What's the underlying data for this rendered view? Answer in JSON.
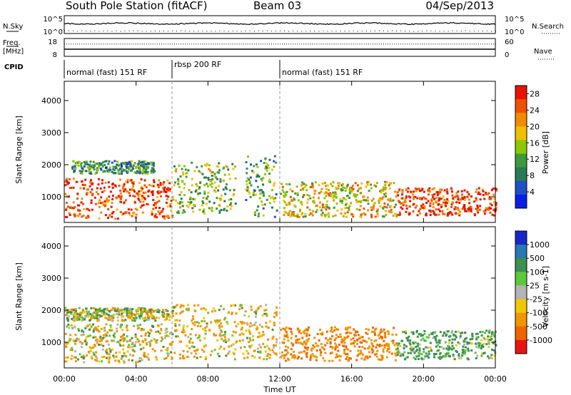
{
  "header": {
    "station": "South Pole Station (fitACF)",
    "beam": "Beam 03",
    "date": "04/Sep/2013"
  },
  "status_panel": {
    "nsky_label": "N.Sky",
    "nsearch_label": "N.Search",
    "freq_label_line1": "Freq.",
    "freq_label_line2": "[MHz]",
    "nave_label": "Nave",
    "cpid_label": "CPID",
    "noise_ticks_left": [
      "10^5",
      "10^0"
    ],
    "noise_ticks_right": [
      "10^5",
      "10^0"
    ],
    "freq_ticks_left": [
      "18",
      "8"
    ],
    "nave_ticks_right": [
      "60",
      "0"
    ],
    "freq_mhz": 12,
    "nave": 40,
    "modes": [
      {
        "label": "normal (fast) 151 RF",
        "start_h": 0,
        "end_h": 6
      },
      {
        "label": "rbsp 200 RF",
        "start_h": 6,
        "end_h": 12
      },
      {
        "label": "normal (fast) 151 RF",
        "start_h": 12,
        "end_h": 24
      }
    ]
  },
  "colors": {
    "power_scale": [
      "#0a1fe6",
      "#2050c8",
      "#2a7a58",
      "#3c9a3c",
      "#8cc800",
      "#f0c000",
      "#f08c00",
      "#f05000",
      "#e81400"
    ],
    "velocity_scale": [
      "#1628c8",
      "#2878b4",
      "#3c9050",
      "#5cc83c",
      "#b4b4b4",
      "#f0c800",
      "#f09600",
      "#f06400",
      "#e81414"
    ]
  },
  "chart_data": [
    {
      "type": "heatmap",
      "name": "power",
      "xlabel": "",
      "ylabel": "Slant Range [km]",
      "xlim": [
        0,
        24
      ],
      "ylim": [
        200,
        4600
      ],
      "x_ticks": [],
      "y_ticks": [
        "1000",
        "2000",
        "3000",
        "4000"
      ],
      "y_tick_values": [
        1000,
        2000,
        3000,
        4000
      ],
      "colorbar": {
        "label": "Power [dB]",
        "ticks": [
          "4",
          "8",
          "12",
          "16",
          "20",
          "24",
          "28"
        ],
        "tick_values": [
          4,
          8,
          12,
          16,
          20,
          24,
          28
        ],
        "range": [
          0,
          30
        ]
      },
      "bands": [
        {
          "start_h": 0.0,
          "end_h": 6.0,
          "range_low_km": 350,
          "range_high_km": 1600,
          "value": 26
        },
        {
          "start_h": 0.4,
          "end_h": 5.0,
          "range_low_km": 1750,
          "range_high_km": 2150,
          "value": 10
        },
        {
          "start_h": 6.0,
          "end_h": 9.5,
          "range_low_km": 500,
          "range_high_km": 2100,
          "value": 14
        },
        {
          "start_h": 10.0,
          "end_h": 11.8,
          "range_low_km": 400,
          "range_high_km": 2300,
          "value": 12
        },
        {
          "start_h": 12.0,
          "end_h": 18.5,
          "range_low_km": 400,
          "range_high_km": 1500,
          "value": 18
        },
        {
          "start_h": 18.5,
          "end_h": 24.0,
          "range_low_km": 450,
          "range_high_km": 1300,
          "value": 26
        }
      ]
    },
    {
      "type": "heatmap",
      "name": "velocity",
      "xlabel": "Time UT",
      "ylabel": "Slant Range [km]",
      "xlim": [
        0,
        24
      ],
      "ylim": [
        200,
        4600
      ],
      "x_ticks": [
        "00:00",
        "04:00",
        "08:00",
        "12:00",
        "16:00",
        "20:00",
        "00:00"
      ],
      "x_tick_values": [
        0,
        4,
        8,
        12,
        16,
        20,
        24
      ],
      "y_ticks": [
        "1000",
        "2000",
        "3000",
        "4000"
      ],
      "y_tick_values": [
        1000,
        2000,
        3000,
        4000
      ],
      "colorbar": {
        "label": "Velocity [m s-1]",
        "ticks": [
          "1000",
          "500",
          "100",
          "25",
          "-25",
          "-100",
          "-500",
          "-1000"
        ],
        "tick_values": [
          1000,
          500,
          100,
          25,
          -25,
          -100,
          -500,
          -1000
        ]
      },
      "bands": [
        {
          "start_h": 0.0,
          "end_h": 6.0,
          "range_low_km": 400,
          "range_high_km": 1600,
          "value": -100
        },
        {
          "start_h": 0.0,
          "end_h": 6.0,
          "range_low_km": 1700,
          "range_high_km": 2100,
          "value": 0
        },
        {
          "start_h": 6.0,
          "end_h": 11.8,
          "range_low_km": 500,
          "range_high_km": 2200,
          "value": -150
        },
        {
          "start_h": 12.0,
          "end_h": 18.5,
          "range_low_km": 450,
          "range_high_km": 1500,
          "value": -400
        },
        {
          "start_h": 18.5,
          "end_h": 24.0,
          "range_low_km": 500,
          "range_high_km": 1400,
          "value": 200
        }
      ]
    }
  ]
}
